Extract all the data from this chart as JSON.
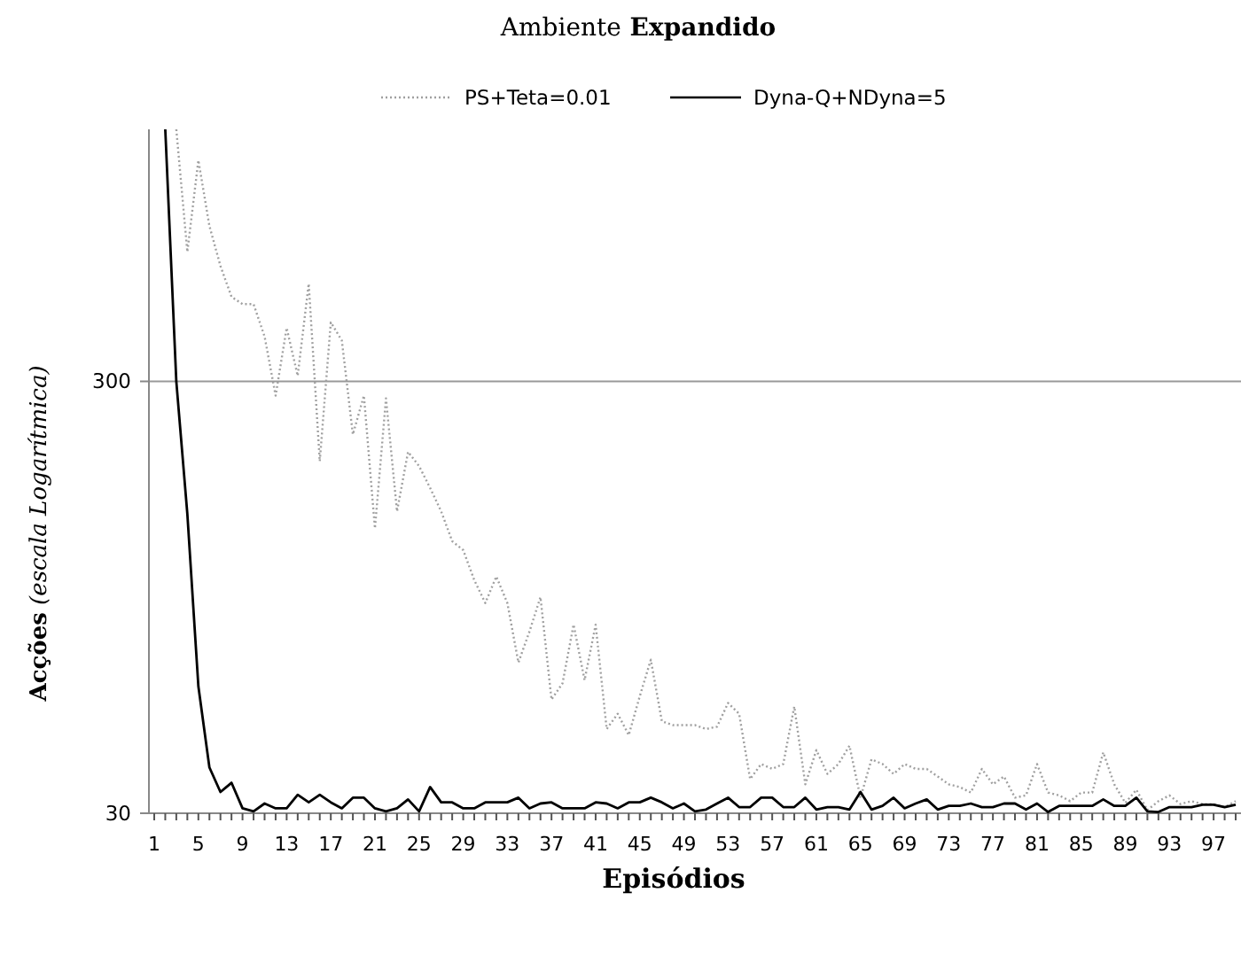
{
  "chart_data": {
    "type": "line",
    "title": "Ambiente Expandido",
    "xlabel": "Episódios",
    "ylabel": "Acções (escala Logarítmica)",
    "categories": [
      "1",
      null,
      null,
      null,
      "5",
      null,
      null,
      null,
      "9",
      null,
      null,
      null,
      "13",
      null,
      null,
      null,
      "17",
      null,
      null,
      null,
      "21",
      null,
      null,
      null,
      "25",
      null,
      null,
      null,
      "29",
      null,
      null,
      null,
      "33",
      null,
      null,
      null,
      "37",
      null,
      null,
      null,
      "41",
      null,
      null,
      null,
      "45",
      null,
      null,
      null,
      "49",
      null,
      null,
      null,
      "53",
      null,
      null,
      null,
      "57",
      null,
      null,
      null,
      "61",
      null,
      null,
      null,
      "65",
      null,
      null,
      null,
      "69",
      null,
      null,
      null,
      "73",
      null,
      null,
      null,
      "77",
      null,
      null,
      null,
      "81",
      null,
      null,
      null,
      "85",
      null,
      null,
      null,
      "89",
      null,
      null,
      null,
      "93",
      null,
      null,
      null,
      "97",
      null,
      null
    ],
    "series": [
      {
        "name": "PS+Teta=0.01",
        "color": "#a0a0a0",
        "line_style": "dotted",
        "values": [
          null,
          null,
          1150,
          598,
          975,
          687,
          555,
          471,
          453,
          453,
          381,
          278,
          399,
          309,
          505,
          196,
          411,
          373,
          226,
          278,
          137,
          274,
          150,
          206,
          191,
          170,
          150,
          128,
          122,
          104,
          92,
          106,
          92,
          67,
          79,
          95,
          55,
          60,
          82,
          61,
          82,
          47,
          51,
          45.5,
          56,
          68,
          49,
          48,
          48,
          48,
          47,
          47.6,
          54,
          51,
          36,
          39,
          38,
          39,
          53,
          35,
          42,
          37,
          39,
          43,
          32.6,
          40,
          39,
          37,
          39,
          38,
          38,
          36.5,
          35,
          34.5,
          33.5,
          38,
          35,
          36.5,
          32.6,
          33,
          39,
          33.5,
          33,
          32,
          33.5,
          33.5,
          41.5,
          35,
          31.7,
          34,
          30.5,
          32,
          33,
          31.5,
          32,
          31.5,
          31.5,
          31,
          32
        ]
      },
      {
        "name": "Dyna-Q+NDyna=5",
        "color": "#000000",
        "line_style": "solid",
        "values": [
          null,
          1150,
          300,
          148,
          59,
          38.3,
          33.6,
          35.3,
          30.8,
          30.3,
          31.6,
          30.8,
          30.8,
          33.1,
          31.8,
          33.1,
          31.8,
          30.8,
          32.6,
          32.6,
          30.8,
          30.3,
          30.8,
          32.3,
          30.3,
          34.5,
          31.8,
          31.8,
          30.8,
          30.8,
          31.8,
          31.8,
          31.8,
          32.6,
          30.8,
          31.6,
          31.8,
          30.8,
          30.8,
          30.8,
          31.8,
          31.6,
          30.8,
          31.8,
          31.8,
          32.6,
          31.8,
          30.8,
          31.6,
          30.3,
          30.6,
          31.6,
          32.6,
          31,
          31,
          32.6,
          32.6,
          31,
          31,
          32.6,
          30.6,
          31,
          31,
          30.6,
          33.6,
          30.6,
          31.2,
          32.6,
          30.8,
          31.6,
          32.3,
          30.6,
          31.2,
          31.2,
          31.6,
          31,
          31,
          31.6,
          31.6,
          30.6,
          31.6,
          30.2,
          31.2,
          31.2,
          31.2,
          31.2,
          32.3,
          31.2,
          31.2,
          32.6,
          30.3,
          30.2,
          31,
          31,
          31,
          31.4,
          31.4,
          31,
          31.4
        ]
      }
    ],
    "log": true,
    "ylim": [
      30,
      1150
    ],
    "yticks": [
      30,
      300
    ],
    "grid": "y",
    "legend": "top",
    "marker": "none"
  }
}
